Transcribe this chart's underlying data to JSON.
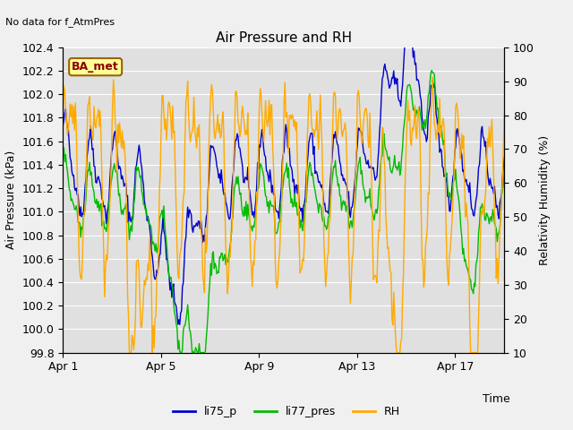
{
  "title": "Air Pressure and RH",
  "top_left_note": "No data for f_AtmPres",
  "ylabel_left": "Air Pressure (kPa)",
  "ylabel_right": "Relativity Humidity (%)",
  "xlabel": "Time",
  "ylim_left": [
    99.8,
    102.4
  ],
  "ylim_right": [
    10,
    100
  ],
  "yticks_left": [
    99.8,
    100.0,
    100.2,
    100.4,
    100.6,
    100.8,
    101.0,
    101.2,
    101.4,
    101.6,
    101.8,
    102.0,
    102.2,
    102.4
  ],
  "yticks_right": [
    10,
    20,
    30,
    40,
    50,
    60,
    70,
    80,
    90,
    100
  ],
  "xtick_positions": [
    0,
    4,
    8,
    12,
    16
  ],
  "xtick_labels": [
    "Apr 1",
    "Apr 5",
    "Apr 9",
    "Apr 13",
    "Apr 17"
  ],
  "xlim": [
    0,
    18
  ],
  "legend_labels": [
    "li75_p",
    "li77_pres",
    "RH"
  ],
  "legend_colors": [
    "#0000cc",
    "#00bb00",
    "#ffaa00"
  ],
  "line_colors_li75": "#0000cc",
  "line_colors_li77": "#00bb00",
  "line_colors_rh": "#ffaa00",
  "bg_color": "#f0f0f0",
  "plot_bg": "#e0e0e0",
  "grid_color": "#ffffff",
  "annotation_text": "BA_met",
  "annotation_facecolor": "#ffff99",
  "annotation_edgecolor": "#996600",
  "title_fontsize": 11,
  "label_fontsize": 9,
  "tick_fontsize": 9,
  "line_width": 1.0,
  "seed": 42,
  "n_points": 500
}
